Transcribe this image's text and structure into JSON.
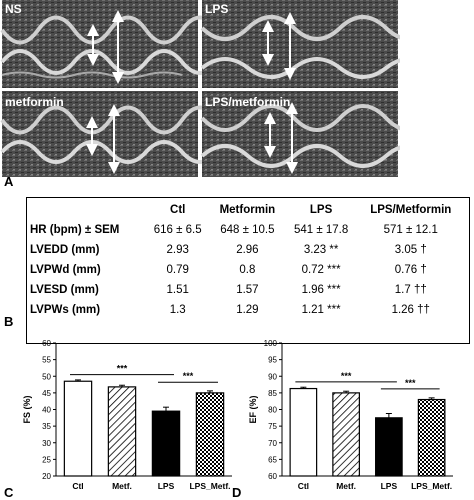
{
  "panel_a": {
    "letter": "A",
    "panels": [
      {
        "label": "NS"
      },
      {
        "label": "LPS"
      },
      {
        "label": "metformin"
      },
      {
        "label": "LPS/metformin"
      }
    ]
  },
  "panel_b": {
    "letter": "B",
    "columns": [
      "",
      "Ctl",
      "Metformin",
      "LPS",
      "LPS/Metformin"
    ],
    "rows": [
      {
        "label": "HR (bpm) ± SEM",
        "cells": [
          "616 ± 6.5",
          "648 ± 10.5",
          "541 ± 17.8",
          "571 ± 12.1"
        ]
      },
      {
        "label": "LVEDD (mm)",
        "cells": [
          "2.93",
          "2.96",
          "3.23 **",
          "3.05 †"
        ]
      },
      {
        "label": "LVPWd (mm)",
        "cells": [
          "0.79",
          "0.8",
          "0.72 ***",
          "0.76 †"
        ]
      },
      {
        "label": "LVESD (mm)",
        "cells": [
          "1.51",
          "1.57",
          "1.96 ***",
          "1.7 ††"
        ]
      },
      {
        "label": "LVPWs (mm)",
        "cells": [
          "1.3",
          "1.29",
          "1.21 ***",
          "1.26 ††"
        ]
      }
    ]
  },
  "chart_data": [
    {
      "type": "bar",
      "panel": "C",
      "categories": [
        "Ctl",
        "Metf.",
        "LPS",
        "LPS_Metf."
      ],
      "values": [
        48.5,
        46.8,
        39.5,
        45.0
      ],
      "errors": [
        0.4,
        0.5,
        1.2,
        0.6
      ],
      "fills": [
        "white",
        "diagonal-hatch",
        "black",
        "checkered"
      ],
      "ylabel": "FS (%)",
      "ylim": [
        20,
        60
      ],
      "yticks": [
        20,
        25,
        30,
        35,
        40,
        45,
        50,
        55,
        60
      ],
      "significance": [
        {
          "from": 0,
          "to": 2,
          "label": "***"
        },
        {
          "from": 2,
          "to": 3,
          "label": "***"
        }
      ]
    },
    {
      "type": "bar",
      "panel": "D",
      "categories": [
        "Ctl",
        "Metf.",
        "LPS",
        "LPS_Metf."
      ],
      "values": [
        86.3,
        85.0,
        77.5,
        83.0
      ],
      "errors": [
        0.4,
        0.5,
        1.3,
        0.5
      ],
      "fills": [
        "white",
        "diagonal-hatch",
        "black",
        "checkered"
      ],
      "ylabel": "EF (%)",
      "ylim": [
        60,
        100
      ],
      "yticks": [
        60,
        65,
        70,
        75,
        80,
        85,
        90,
        95,
        100
      ],
      "significance": [
        {
          "from": 0,
          "to": 2,
          "label": "***"
        },
        {
          "from": 2,
          "to": 3,
          "label": "***"
        }
      ]
    }
  ]
}
